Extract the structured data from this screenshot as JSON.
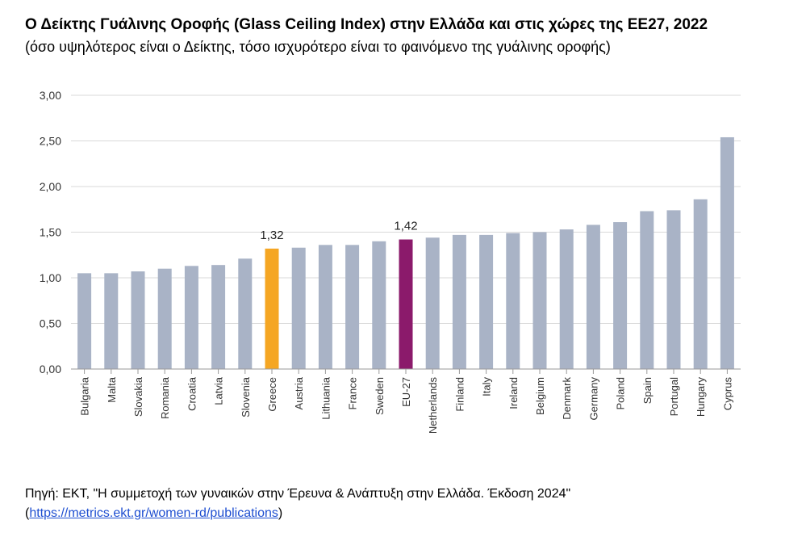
{
  "header": {
    "title": "Ο Δείκτης Γυάλινης Οροφής (Glass Ceiling Index) στην Ελλάδα και στις χώρες της ΕΕ27, 2022",
    "subtitle": "(όσο υψηλότερος είναι ο Δείκτης, τόσο ισχυρότερο είναι το φαινόμενο της γυάλινης οροφής)"
  },
  "footer": {
    "source_line": "Πηγή: ΕΚΤ, \"Η συμμετοχή των γυναικών στην Έρευνα & Ανάπτυξη στην Ελλάδα. Έκδοση 2024\"",
    "paren_open": "(",
    "link_text": "https://metrics.ekt.gr/women-rd/publications",
    "paren_close": ")"
  },
  "colors": {
    "default_bar": "#a9b3c6",
    "greece_bar": "#f5a623",
    "eu_bar": "#8b1a6b",
    "grid": "#d9d9d9",
    "axis_text": "#333333"
  },
  "chart_data": {
    "type": "bar",
    "categories": [
      "Bulgaria",
      "Malta",
      "Slovakia",
      "Romania",
      "Croatia",
      "Latvia",
      "Slovenia",
      "Greece",
      "Austria",
      "Lithuania",
      "France",
      "Sweden",
      "EU-27",
      "Netherlands",
      "Finland",
      "Italy",
      "Ireland",
      "Belgium",
      "Denmark",
      "Germany",
      "Poland",
      "Spain",
      "Portugal",
      "Hungary",
      "Cyprus"
    ],
    "values": [
      1.05,
      1.05,
      1.07,
      1.1,
      1.13,
      1.14,
      1.21,
      1.32,
      1.33,
      1.36,
      1.36,
      1.4,
      1.42,
      1.44,
      1.47,
      1.47,
      1.49,
      1.5,
      1.53,
      1.58,
      1.61,
      1.73,
      1.74,
      1.86,
      2.54
    ],
    "highlight": {
      "Greece": "greece_bar",
      "EU-27": "eu_bar"
    },
    "data_labels": [
      {
        "category": "Greece",
        "text": "1,32"
      },
      {
        "category": "EU-27",
        "text": "1,42"
      }
    ],
    "y_ticks": [
      "0,00",
      "0,50",
      "1,00",
      "1,50",
      "2,00",
      "2,50",
      "3,00"
    ],
    "ylim": [
      0,
      3
    ],
    "grid": true,
    "legend": "none"
  }
}
